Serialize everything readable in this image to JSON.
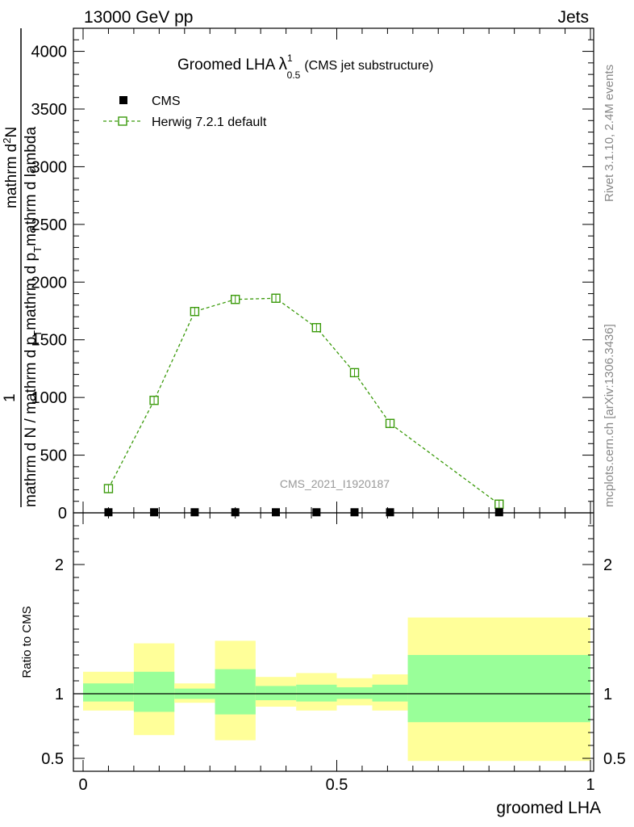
{
  "header": {
    "energy_label": "13000 GeV pp",
    "process_label": "Jets"
  },
  "side_labels": {
    "rivet": "Rivet 3.1.10,  2.4M events",
    "mcplots": "mcplots.cern.ch [arXiv:1306.3436]"
  },
  "watermark": "CMS_2021_I1920187",
  "chart_data": [
    {
      "type": "line",
      "title": {
        "main": "Groomed LHA",
        "lambda": "λ",
        "sup": "1",
        "sub": "0.5",
        "tail": "(CMS jet substructure)"
      },
      "xlabel": "",
      "ylabel": {
        "numerator": "mathrm d²N",
        "denominator": "mathrm d N / mathrm d p_{T} mathrm d p_{T} mathrm d lambda",
        "lead": "1"
      },
      "ylabel_text": {
        "numerator": "mathrm d",
        "num_sup": "2",
        "num_tail": "N",
        "lead": "1",
        "denominator": "mathrm d N / mathrm d p",
        "den_sub": "T",
        "den_tail": "mathrm d p",
        "den_sub2": "T",
        "den_tail2": "mathrm d lambda"
      },
      "xlim": [
        0,
        1
      ],
      "ylim": [
        0,
        4200
      ],
      "y_ticks": [
        0,
        500,
        1000,
        1500,
        2000,
        2500,
        3000,
        3500,
        4000
      ],
      "y_tick_labels": [
        "0",
        "500",
        "1000",
        "1500",
        "2000",
        "2500",
        "3000",
        "3500",
        "4000"
      ],
      "legend": [
        {
          "label": "CMS",
          "marker": "filled-square",
          "color": "#000000"
        },
        {
          "label": "Herwig 7.2.1 default",
          "marker": "open-square",
          "color": "#3a9a0a"
        }
      ],
      "legend_position": "top-left",
      "series": [
        {
          "name": "CMS",
          "x": [
            0.05,
            0.14,
            0.22,
            0.3,
            0.38,
            0.46,
            0.535,
            0.605,
            0.82
          ],
          "y": [
            5,
            5,
            5,
            5,
            5,
            5,
            5,
            5,
            5
          ]
        },
        {
          "name": "Herwig 7.2.1 default",
          "x": [
            0.05,
            0.14,
            0.22,
            0.3,
            0.38,
            0.46,
            0.535,
            0.605,
            0.82
          ],
          "y": [
            210,
            975,
            1745,
            1850,
            1860,
            1605,
            1215,
            775,
            75
          ]
        }
      ]
    },
    {
      "type": "area",
      "title": "",
      "xlabel": "groomed LHA",
      "ylabel": "Ratio to CMS",
      "xlim": [
        0,
        1
      ],
      "ylim": [
        0.4,
        2.4
      ],
      "x_ticks": [
        0,
        0.5,
        1
      ],
      "x_tick_labels": [
        "0",
        "0.5",
        "1"
      ],
      "y_ticks": [
        0.5,
        1,
        2
      ],
      "y_tick_labels": [
        "0.5",
        "1",
        "2"
      ],
      "reference_line": 1,
      "band_colors": {
        "inner": "#99ff99",
        "outer": "#ffff99"
      },
      "bins": [
        {
          "x0": 0.0,
          "x1": 0.1,
          "inner": [
            0.94,
            1.08
          ],
          "outer": [
            0.87,
            1.17
          ]
        },
        {
          "x0": 0.1,
          "x1": 0.18,
          "inner": [
            0.86,
            1.17
          ],
          "outer": [
            0.68,
            1.39
          ]
        },
        {
          "x0": 0.18,
          "x1": 0.26,
          "inner": [
            0.96,
            1.04
          ],
          "outer": [
            0.93,
            1.08
          ]
        },
        {
          "x0": 0.26,
          "x1": 0.34,
          "inner": [
            0.84,
            1.19
          ],
          "outer": [
            0.64,
            1.41
          ]
        },
        {
          "x0": 0.34,
          "x1": 0.42,
          "inner": [
            0.95,
            1.06
          ],
          "outer": [
            0.9,
            1.13
          ]
        },
        {
          "x0": 0.42,
          "x1": 0.5,
          "inner": [
            0.94,
            1.07
          ],
          "outer": [
            0.87,
            1.16
          ]
        },
        {
          "x0": 0.5,
          "x1": 0.57,
          "inner": [
            0.96,
            1.05
          ],
          "outer": [
            0.91,
            1.12
          ]
        },
        {
          "x0": 0.57,
          "x1": 0.64,
          "inner": [
            0.94,
            1.07
          ],
          "outer": [
            0.87,
            1.15
          ]
        },
        {
          "x0": 0.64,
          "x1": 1.0,
          "inner": [
            0.78,
            1.3
          ],
          "outer": [
            0.48,
            1.59
          ]
        }
      ]
    }
  ]
}
